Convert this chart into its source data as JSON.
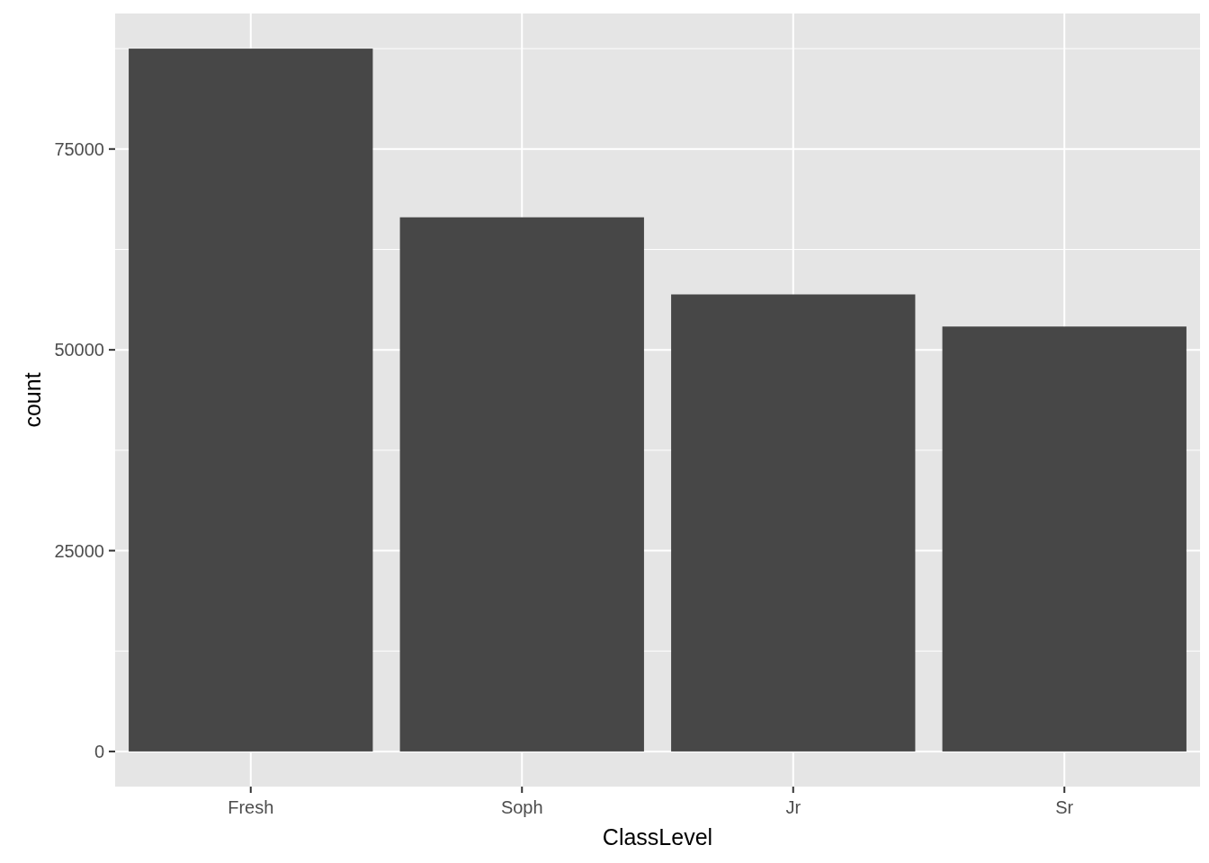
{
  "chart_data": {
    "type": "bar",
    "xlabel": "ClassLevel",
    "ylabel": "count",
    "categories": [
      "Fresh",
      "Soph",
      "Jr",
      "Sr"
    ],
    "values": [
      87500,
      66500,
      56900,
      52900
    ],
    "color": "#474747",
    "ylim": [
      -4375,
      91875
    ],
    "yticks": [
      0,
      25000,
      50000,
      75000
    ],
    "grid": true
  }
}
